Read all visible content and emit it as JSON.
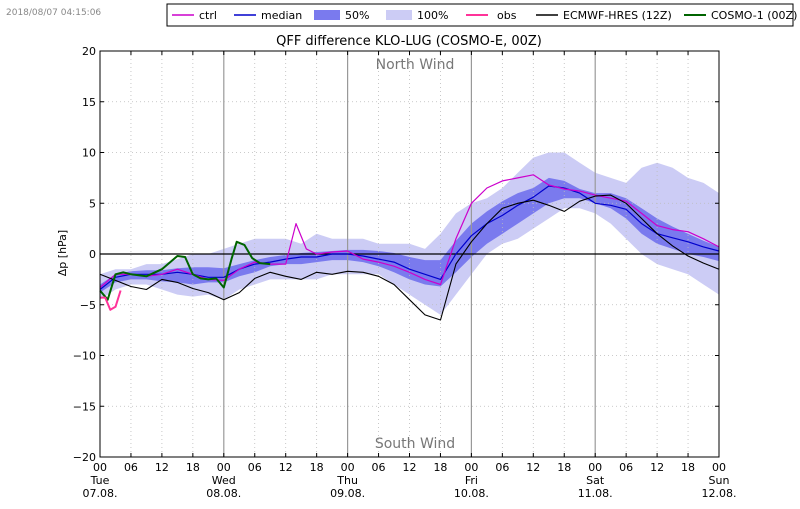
{
  "timestamp": "2018/08/07 04:15:06",
  "chart_data": {
    "type": "line",
    "title": "QFF difference KLO-LUG (COSMO-E, 00Z)",
    "ylabel": "Δp [hPa]",
    "xlabel": "",
    "ylim": [
      -20,
      20
    ],
    "yticks": [
      20,
      15,
      10,
      5,
      0,
      -5,
      -10,
      -15,
      -20
    ],
    "xlim_hours": [
      0,
      120
    ],
    "xticks": [
      {
        "h": 0,
        "label": "00",
        "day": "Tue",
        "date": "07.08."
      },
      {
        "h": 6,
        "label": "06"
      },
      {
        "h": 12,
        "label": "12"
      },
      {
        "h": 18,
        "label": "18"
      },
      {
        "h": 24,
        "label": "00",
        "day": "Wed",
        "date": "08.08."
      },
      {
        "h": 30,
        "label": "06"
      },
      {
        "h": 36,
        "label": "12"
      },
      {
        "h": 42,
        "label": "18"
      },
      {
        "h": 48,
        "label": "00",
        "day": "Thu",
        "date": "09.08."
      },
      {
        "h": 54,
        "label": "06"
      },
      {
        "h": 60,
        "label": "12"
      },
      {
        "h": 66,
        "label": "18"
      },
      {
        "h": 72,
        "label": "00",
        "day": "Fri",
        "date": "10.08."
      },
      {
        "h": 78,
        "label": "06"
      },
      {
        "h": 84,
        "label": "12"
      },
      {
        "h": 90,
        "label": "18"
      },
      {
        "h": 96,
        "label": "00",
        "day": "Sat",
        "date": "11.08."
      },
      {
        "h": 102,
        "label": "06"
      },
      {
        "h": 108,
        "label": "12"
      },
      {
        "h": 114,
        "label": "18"
      },
      {
        "h": 120,
        "label": "00",
        "day": "Sun",
        "date": "12.08."
      }
    ],
    "annotations": {
      "top": "North Wind",
      "bottom": "South Wind"
    },
    "legend": [
      {
        "key": "ctrl",
        "label": "ctrl",
        "kind": "line",
        "color": "#cc00cc"
      },
      {
        "key": "median",
        "label": "median",
        "kind": "line",
        "color": "#0000cc"
      },
      {
        "key": "p50",
        "label": "50%",
        "kind": "patch",
        "color": "#7a7aee"
      },
      {
        "key": "p100",
        "label": "100%",
        "kind": "patch",
        "color": "#ccccf5"
      },
      {
        "key": "obs",
        "label": "obs",
        "kind": "line",
        "color": "#ff3399"
      },
      {
        "key": "ecmwf",
        "label": "ECMWF-HRES (12Z)",
        "kind": "line",
        "color": "#000000"
      },
      {
        "key": "cosmo1",
        "label": "COSMO-1 (00Z)",
        "kind": "line",
        "color": "#006400"
      }
    ],
    "band100": {
      "x": [
        0,
        3,
        6,
        9,
        12,
        15,
        18,
        21,
        24,
        27,
        30,
        33,
        36,
        39,
        42,
        45,
        48,
        51,
        54,
        57,
        60,
        63,
        66,
        69,
        72,
        75,
        78,
        81,
        84,
        87,
        90,
        93,
        96,
        99,
        102,
        105,
        108,
        111,
        114,
        117,
        120
      ],
      "lower": [
        -4.5,
        -3.5,
        -3,
        -3,
        -3.5,
        -4,
        -4.2,
        -4,
        -4.5,
        -3.5,
        -3,
        -2.5,
        -2.5,
        -2.5,
        -2.5,
        -2,
        -2,
        -2,
        -2,
        -3,
        -4,
        -5,
        -6,
        -4,
        -2,
        0,
        1,
        1.5,
        2.5,
        3.5,
        4.5,
        4.5,
        4,
        3,
        1.5,
        0,
        -1,
        -1.5,
        -2,
        -3,
        -4
      ],
      "upper": [
        -2,
        -1.5,
        -1.5,
        -1,
        -1,
        -0.5,
        0,
        0,
        0.5,
        1,
        1.5,
        1.5,
        1.5,
        1,
        2,
        1.5,
        1.5,
        1.5,
        1,
        1,
        1,
        0.5,
        2,
        4,
        5,
        5.5,
        6.5,
        8,
        9.5,
        10,
        10,
        9,
        8,
        7.5,
        7,
        8.5,
        9,
        8.5,
        7.5,
        7,
        6
      ]
    },
    "band50": {
      "x": [
        0,
        3,
        6,
        9,
        12,
        15,
        18,
        21,
        24,
        27,
        30,
        33,
        36,
        39,
        42,
        45,
        48,
        51,
        54,
        57,
        60,
        63,
        66,
        69,
        72,
        75,
        78,
        81,
        84,
        87,
        90,
        93,
        96,
        99,
        102,
        105,
        108,
        111,
        114,
        117,
        120
      ],
      "lower": [
        -3.8,
        -2.8,
        -2.5,
        -2.5,
        -2.7,
        -2.8,
        -3,
        -2.8,
        -2.8,
        -2.2,
        -1.8,
        -1.2,
        -1,
        -1,
        -0.8,
        -0.6,
        -0.6,
        -0.8,
        -1.2,
        -1.8,
        -2.5,
        -3,
        -3.2,
        -1.8,
        -0.3,
        1,
        2,
        3,
        4,
        5,
        5.5,
        5.5,
        5,
        4.5,
        3.5,
        2,
        1,
        0.5,
        0,
        -0.3,
        -0.7
      ],
      "upper": [
        -3,
        -2,
        -1.7,
        -1.6,
        -1.6,
        -1.4,
        -1.3,
        -1.3,
        -1.4,
        -1.0,
        -0.6,
        -0.3,
        -0.1,
        0.1,
        0.2,
        0.3,
        0.4,
        0.4,
        0.3,
        0.1,
        -0.3,
        -0.6,
        -0.6,
        1.3,
        3,
        4.2,
        5.2,
        6,
        6.5,
        7.5,
        7.2,
        6.4,
        6,
        6,
        5.5,
        4.5,
        3.5,
        2.7,
        2,
        1.3,
        0.7
      ]
    },
    "series": [
      {
        "key": "median",
        "name": "median",
        "color": "#0000cc",
        "width": 1.2,
        "x": [
          0,
          3,
          6,
          9,
          12,
          15,
          18,
          21,
          24,
          27,
          30,
          33,
          36,
          39,
          42,
          45,
          48,
          51,
          54,
          57,
          60,
          63,
          66,
          69,
          72,
          75,
          78,
          81,
          84,
          87,
          90,
          93,
          96,
          99,
          102,
          105,
          108,
          111,
          114,
          117,
          120
        ],
        "y": [
          -3.5,
          -2.3,
          -2,
          -2,
          -2,
          -1.8,
          -2,
          -2.3,
          -2.3,
          -1.5,
          -1,
          -0.8,
          -0.5,
          -0.3,
          -0.3,
          0,
          0,
          -0.2,
          -0.5,
          -0.8,
          -1.5,
          -2,
          -2.5,
          0,
          1.8,
          3,
          3.8,
          4.8,
          5.6,
          6.7,
          6.5,
          6,
          5,
          4.8,
          4.4,
          3,
          2,
          1.6,
          1.2,
          0.7,
          0.3
        ]
      },
      {
        "key": "ctrl",
        "name": "ctrl",
        "color": "#cc00cc",
        "width": 1.2,
        "x": [
          0,
          3,
          6,
          9,
          12,
          15,
          18,
          21,
          24,
          27,
          30,
          33,
          36,
          38,
          40,
          42,
          45,
          48,
          51,
          54,
          57,
          60,
          63,
          66,
          69,
          72,
          75,
          78,
          81,
          84,
          87,
          90,
          93,
          96,
          99,
          102,
          105,
          108,
          111,
          114,
          117,
          120
        ],
        "y": [
          -3.3,
          -2,
          -2,
          -2.2,
          -2,
          -1.5,
          -2,
          -2.5,
          -2.6,
          -1.5,
          -0.8,
          -1,
          -1,
          3,
          0.5,
          0,
          0.2,
          0.3,
          -0.5,
          -0.8,
          -1.2,
          -1.8,
          -2.5,
          -3,
          1.5,
          5,
          6.5,
          7.2,
          7.5,
          7.8,
          6.8,
          6.4,
          6.2,
          5.8,
          5.5,
          5.2,
          4,
          2.8,
          2.4,
          2.2,
          1.5,
          0.7
        ]
      },
      {
        "key": "ecmwf",
        "name": "ECMWF-HRES (12Z)",
        "color": "#000000",
        "width": 1.1,
        "x": [
          0,
          3,
          6,
          9,
          12,
          15,
          18,
          21,
          24,
          27,
          30,
          33,
          36,
          39,
          42,
          45,
          48,
          51,
          54,
          57,
          60,
          63,
          66,
          69,
          72,
          75,
          78,
          81,
          84,
          87,
          90,
          93,
          96,
          99,
          102,
          105,
          108,
          111,
          114,
          117,
          120
        ],
        "y": [
          -2,
          -2.6,
          -3.2,
          -3.5,
          -2.5,
          -2.8,
          -3.4,
          -3.8,
          -4.5,
          -3.8,
          -2.4,
          -1.8,
          -2.2,
          -2.5,
          -1.8,
          -2,
          -1.7,
          -1.8,
          -2.2,
          -3,
          -4.5,
          -6,
          -6.5,
          -1,
          1.2,
          3,
          4.5,
          5,
          5.3,
          4.8,
          4.2,
          5.2,
          5.7,
          5.8,
          5,
          3.5,
          2,
          0.8,
          -0.2,
          -0.9,
          -1.5
        ]
      },
      {
        "key": "cosmo1",
        "name": "COSMO-1 (00Z)",
        "color": "#006400",
        "width": 2.0,
        "x": [
          0,
          1.5,
          3,
          4.5,
          6,
          9,
          12,
          15,
          16.5,
          18,
          19.5,
          21,
          22.5,
          24,
          25.5,
          26.5,
          28,
          29.5,
          31,
          33
        ],
        "y": [
          -3.6,
          -4.5,
          -2,
          -1.8,
          -2,
          -2.2,
          -1.5,
          -0.2,
          -0.3,
          -2,
          -2.4,
          -2.5,
          -2.4,
          -3.3,
          -0.5,
          1.2,
          0.9,
          -0.4,
          -0.9,
          -1
        ]
      },
      {
        "key": "obs",
        "name": "obs",
        "color": "#ff3399",
        "width": 2.0,
        "x": [
          0,
          1,
          2,
          3,
          4
        ],
        "y": [
          -4.3,
          -4.3,
          -5.5,
          -5.2,
          -3.6
        ]
      }
    ]
  }
}
